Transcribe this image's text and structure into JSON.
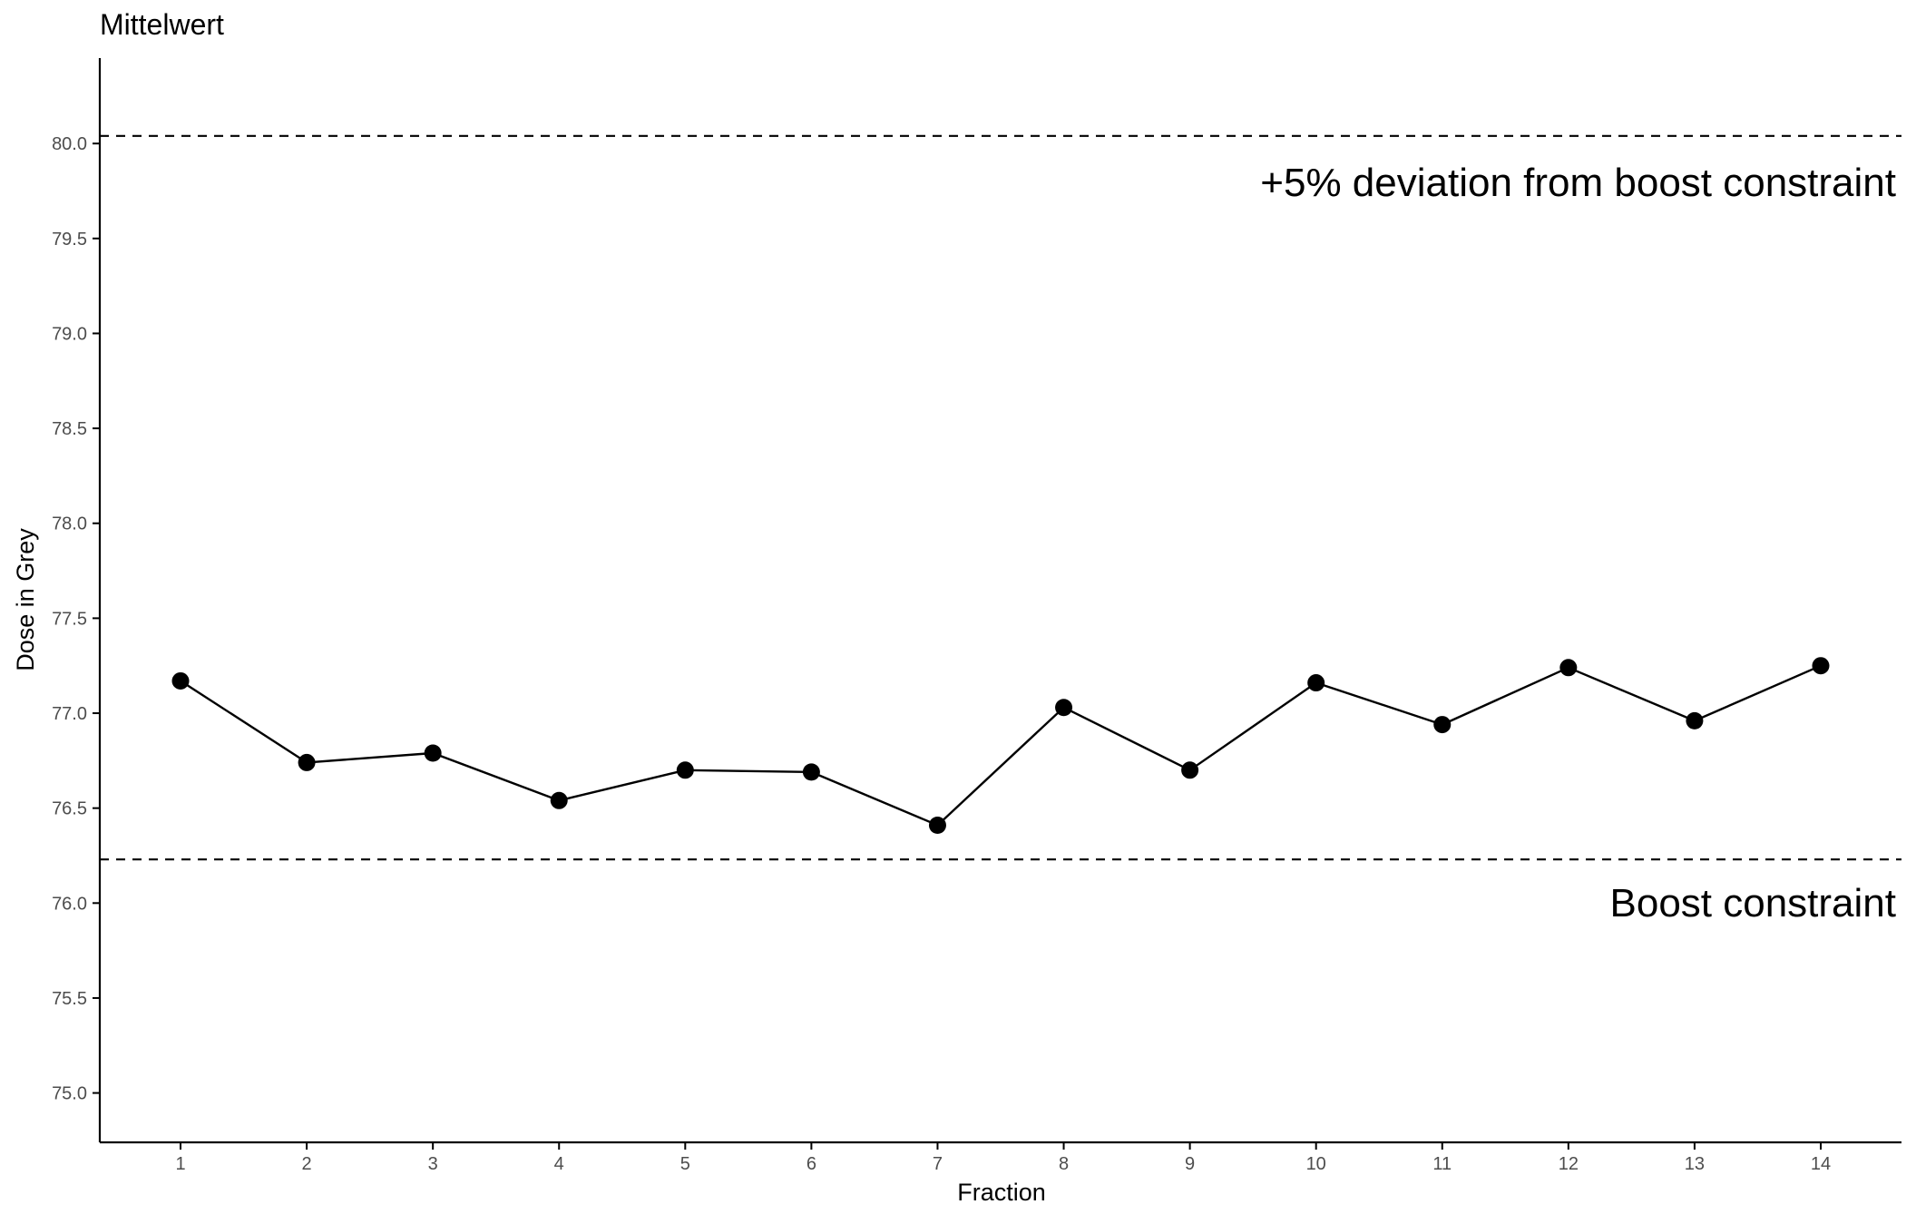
{
  "chart_data": {
    "type": "line",
    "title": "Mittelwert",
    "xlabel": "Fraction",
    "ylabel": "Dose in Grey",
    "x": [
      1,
      2,
      3,
      4,
      5,
      6,
      7,
      8,
      9,
      10,
      11,
      12,
      13,
      14
    ],
    "x_tick_labels": [
      "1",
      "2",
      "3",
      "4",
      "5",
      "6",
      "7",
      "8",
      "9",
      "10",
      "11",
      "12",
      "13",
      "14"
    ],
    "series": [
      {
        "values": [
          77.17,
          76.74,
          76.79,
          76.54,
          76.7,
          76.69,
          76.41,
          77.03,
          76.7,
          77.16,
          76.94,
          77.24,
          76.96,
          77.25
        ]
      }
    ],
    "y_ticks": [
      75.0,
      75.5,
      76.0,
      76.5,
      77.0,
      77.5,
      78.0,
      78.5,
      79.0,
      79.5,
      80.0
    ],
    "y_tick_labels": [
      "75.0",
      "75.5",
      "76.0",
      "76.5",
      "77.0",
      "77.5",
      "78.0",
      "78.5",
      "79.0",
      "79.5",
      "80.0"
    ],
    "xlim": [
      0.36,
      14.64
    ],
    "ylim": [
      74.74,
      80.45
    ],
    "grid": false,
    "legend": "none",
    "reference_lines": [
      {
        "y": 80.04,
        "style": "dashed",
        "label": "+5% deviation from boost constraint"
      },
      {
        "y": 76.23,
        "style": "dashed",
        "label": "Boost constraint"
      }
    ],
    "colors": {
      "line": "#000000",
      "points": "#000000",
      "axis": "#000000",
      "tick_text": "#4d4d4d"
    }
  }
}
